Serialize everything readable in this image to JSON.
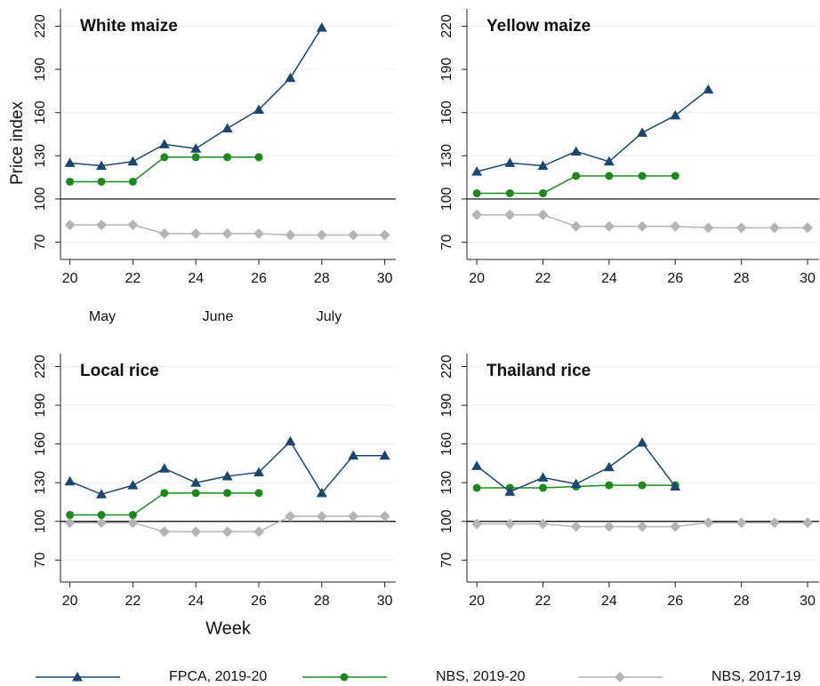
{
  "chart_data": [
    {
      "type": "line",
      "title": "White maize",
      "y_label": "Price index",
      "month_labels": [
        "May",
        "June",
        "July"
      ],
      "x": [
        20,
        21,
        22,
        23,
        24,
        25,
        26,
        27,
        28,
        29,
        30
      ],
      "xlim": [
        19.7,
        30.35
      ],
      "xticks": [
        20,
        22,
        24,
        26,
        28,
        30
      ],
      "ylim": [
        58,
        232
      ],
      "yticks": [
        70,
        100,
        130,
        160,
        190,
        220
      ],
      "hline": 100,
      "grid": true,
      "series": [
        {
          "name": "FPCA, 2019-20",
          "color": "#1a476f",
          "marker": "triangle",
          "values": [
            125,
            123,
            126,
            138,
            135,
            149,
            162,
            184,
            219,
            null,
            null
          ]
        },
        {
          "name": "NBS, 2019-20",
          "color": "#1b8a1b",
          "marker": "circle",
          "values": [
            112,
            112,
            112,
            129,
            129,
            129,
            129,
            null,
            null,
            null,
            null
          ]
        },
        {
          "name": "NBS, 2017-19",
          "color": "#b4b4b4",
          "marker": "diamond",
          "values": [
            82,
            82,
            82,
            76,
            76,
            76,
            76,
            75,
            75,
            75,
            75
          ]
        }
      ]
    },
    {
      "type": "line",
      "title": "Yellow maize",
      "x": [
        20,
        21,
        22,
        23,
        24,
        25,
        26,
        27,
        28,
        29,
        30
      ],
      "xlim": [
        19.7,
        30.35
      ],
      "xticks": [
        20,
        22,
        24,
        26,
        28,
        30
      ],
      "ylim": [
        58,
        232
      ],
      "yticks": [
        70,
        100,
        130,
        160,
        190,
        220
      ],
      "hline": 100,
      "grid": true,
      "series": [
        {
          "color": "#1a476f",
          "marker": "triangle",
          "values": [
            119,
            125,
            123,
            133,
            126,
            146,
            158,
            176,
            null,
            null,
            null
          ]
        },
        {
          "color": "#1b8a1b",
          "marker": "circle",
          "values": [
            104,
            104,
            104,
            116,
            116,
            116,
            116,
            null,
            null,
            null,
            null
          ]
        },
        {
          "color": "#b4b4b4",
          "marker": "diamond",
          "values": [
            89,
            89,
            89,
            81,
            81,
            81,
            81,
            80,
            80,
            80,
            80
          ]
        }
      ]
    },
    {
      "type": "line",
      "title": "Local rice",
      "x_label": "Week",
      "x": [
        20,
        21,
        22,
        23,
        24,
        25,
        26,
        27,
        28,
        29,
        30
      ],
      "xlim": [
        19.7,
        30.35
      ],
      "xticks": [
        20,
        22,
        24,
        26,
        28,
        30
      ],
      "ylim": [
        53,
        230
      ],
      "yticks": [
        70,
        100,
        130,
        160,
        190,
        220
      ],
      "hline": 100,
      "grid": true,
      "series": [
        {
          "color": "#1a476f",
          "marker": "triangle",
          "values": [
            131,
            121,
            128,
            141,
            130,
            135,
            138,
            162,
            122,
            151,
            151
          ]
        },
        {
          "color": "#1b8a1b",
          "marker": "circle",
          "values": [
            105,
            105,
            105,
            122,
            122,
            122,
            122,
            null,
            null,
            null,
            null
          ]
        },
        {
          "color": "#b4b4b4",
          "marker": "diamond",
          "values": [
            99,
            99,
            99,
            92,
            92,
            92,
            92,
            104,
            104,
            104,
            104
          ]
        }
      ]
    },
    {
      "type": "line",
      "title": "Thailand rice",
      "x": [
        20,
        21,
        22,
        23,
        24,
        25,
        26,
        27,
        28,
        29,
        30
      ],
      "xlim": [
        19.7,
        30.35
      ],
      "xticks": [
        20,
        22,
        24,
        26,
        28,
        30
      ],
      "ylim": [
        53,
        230
      ],
      "yticks": [
        70,
        100,
        130,
        160,
        190,
        220
      ],
      "hline": 100,
      "grid": true,
      "series": [
        {
          "color": "#1a476f",
          "marker": "triangle",
          "values": [
            143,
            123,
            134,
            129,
            142,
            161,
            127,
            null,
            null,
            null,
            null
          ]
        },
        {
          "color": "#1b8a1b",
          "marker": "circle",
          "values": [
            126,
            126,
            126,
            127,
            128,
            128,
            128,
            null,
            null,
            null,
            null
          ]
        },
        {
          "color": "#b4b4b4",
          "marker": "diamond",
          "values": [
            98,
            98,
            98,
            96,
            96,
            96,
            96,
            99,
            99,
            99,
            99
          ]
        }
      ]
    }
  ]
}
